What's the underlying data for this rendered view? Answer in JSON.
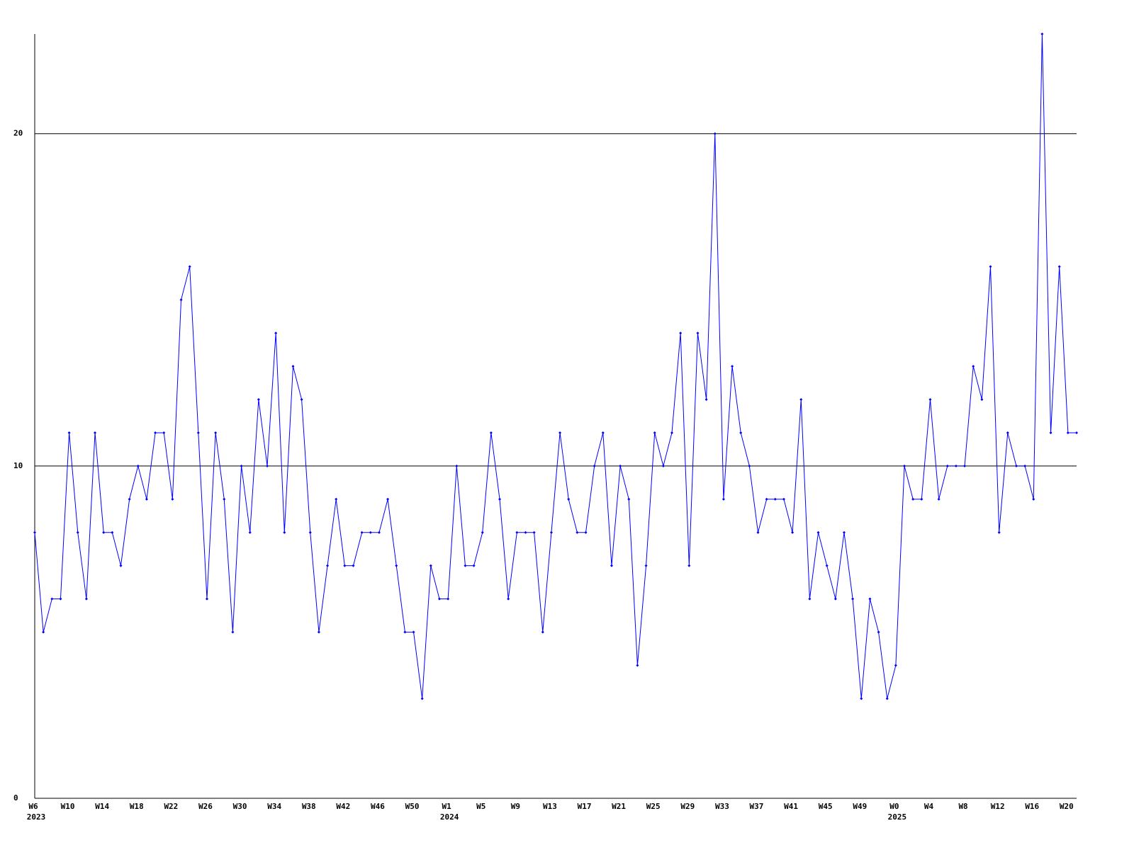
{
  "chart_data": {
    "type": "line",
    "categories": [
      "W6",
      null,
      null,
      null,
      "W10",
      null,
      null,
      null,
      "W14",
      null,
      null,
      null,
      "W18",
      null,
      null,
      null,
      "W22",
      null,
      null,
      null,
      "W26",
      null,
      null,
      null,
      "W30",
      null,
      null,
      null,
      "W34",
      null,
      null,
      null,
      "W38",
      null,
      null,
      null,
      "W42",
      null,
      null,
      null,
      "W46",
      null,
      null,
      null,
      "W50",
      null,
      null,
      null,
      "W1",
      null,
      null,
      null,
      "W5",
      null,
      null,
      null,
      "W9",
      null,
      null,
      null,
      "W13",
      null,
      null,
      null,
      "W17",
      null,
      null,
      null,
      "W21",
      null,
      null,
      null,
      "W25",
      null,
      null,
      null,
      "W29",
      null,
      null,
      null,
      "W33",
      null,
      null,
      null,
      "W37",
      null,
      null,
      null,
      "W41",
      null,
      null,
      null,
      "W45",
      null,
      null,
      null,
      "W49",
      null,
      null,
      null,
      "W0",
      null,
      null,
      null,
      "W4",
      null,
      null,
      null,
      "W8",
      null,
      null,
      null,
      "W12",
      null,
      null,
      null,
      "W16",
      null,
      null,
      null,
      "W20",
      null
    ],
    "years": [
      "2023",
      null,
      null,
      null,
      null,
      null,
      null,
      null,
      null,
      null,
      null,
      null,
      null,
      null,
      null,
      null,
      null,
      null,
      null,
      null,
      null,
      null,
      null,
      null,
      null,
      null,
      null,
      null,
      null,
      null,
      null,
      null,
      null,
      null,
      null,
      null,
      null,
      null,
      null,
      null,
      null,
      null,
      null,
      null,
      null,
      null,
      null,
      null,
      "2024",
      null,
      null,
      null,
      null,
      null,
      null,
      null,
      null,
      null,
      null,
      null,
      null,
      null,
      null,
      null,
      null,
      null,
      null,
      null,
      null,
      null,
      null,
      null,
      null,
      null,
      null,
      null,
      null,
      null,
      null,
      null,
      null,
      null,
      null,
      null,
      null,
      null,
      null,
      null,
      null,
      null,
      null,
      null,
      null,
      null,
      null,
      null,
      null,
      null,
      null,
      null,
      "2025",
      null,
      null,
      null,
      null,
      null,
      null,
      null,
      null,
      null,
      null,
      null,
      null,
      null,
      null,
      null,
      null,
      null,
      null,
      null,
      null,
      null
    ],
    "series": [
      {
        "color": "#0000ff",
        "values": [
          8,
          5,
          6,
          6,
          11,
          8,
          6,
          11,
          8,
          8,
          7,
          9,
          10,
          9,
          11,
          11,
          9,
          15,
          16,
          11,
          6,
          11,
          9,
          5,
          10,
          8,
          12,
          10,
          14,
          8,
          13,
          12,
          8,
          5,
          7,
          9,
          7,
          7,
          8,
          8,
          8,
          9,
          7,
          5,
          5,
          3,
          7,
          6,
          6,
          10,
          7,
          7,
          8,
          11,
          9,
          6,
          8,
          8,
          8,
          5,
          8,
          11,
          9,
          8,
          8,
          10,
          11,
          7,
          10,
          9,
          4,
          7,
          11,
          10,
          11,
          14,
          7,
          14,
          12,
          20,
          9,
          13,
          11,
          10,
          8,
          9,
          9,
          9,
          8,
          12,
          6,
          8,
          7,
          6,
          8,
          6,
          3,
          6,
          5,
          3,
          4,
          10,
          9,
          9,
          12,
          9,
          10,
          10,
          10,
          13,
          12,
          16,
          8,
          11,
          10,
          10,
          9,
          23,
          11,
          16,
          11,
          11
        ]
      }
    ],
    "ylim": [
      0,
      23
    ],
    "yticks": [
      0,
      10,
      20
    ],
    "grid": true
  }
}
